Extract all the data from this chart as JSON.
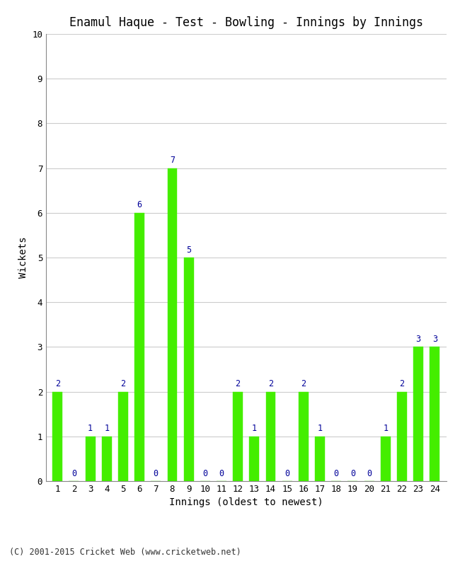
{
  "title": "Enamul Haque - Test - Bowling - Innings by Innings",
  "xlabel": "Innings (oldest to newest)",
  "ylabel": "Wickets",
  "bar_color": "#44ee00",
  "bar_edge_color": "#44ee00",
  "background_color": "#ffffff",
  "grid_color": "#cccccc",
  "label_color": "#000099",
  "footer": "(C) 2001-2015 Cricket Web (www.cricketweb.net)",
  "categories": [
    "1",
    "2",
    "3",
    "4",
    "5",
    "6",
    "7",
    "8",
    "9",
    "10",
    "11",
    "12",
    "13",
    "14",
    "15",
    "16",
    "17",
    "18",
    "19",
    "20",
    "21",
    "22",
    "23",
    "24"
  ],
  "values": [
    2,
    0,
    1,
    1,
    2,
    6,
    0,
    7,
    5,
    0,
    0,
    2,
    1,
    2,
    0,
    2,
    1,
    0,
    0,
    0,
    1,
    2,
    3,
    3
  ],
  "ylim": [
    0,
    10
  ],
  "yticks": [
    0,
    1,
    2,
    3,
    4,
    5,
    6,
    7,
    8,
    9,
    10
  ],
  "title_fontsize": 12,
  "axis_label_fontsize": 10,
  "tick_fontsize": 9,
  "bar_label_fontsize": 8.5,
  "footer_fontsize": 8.5
}
